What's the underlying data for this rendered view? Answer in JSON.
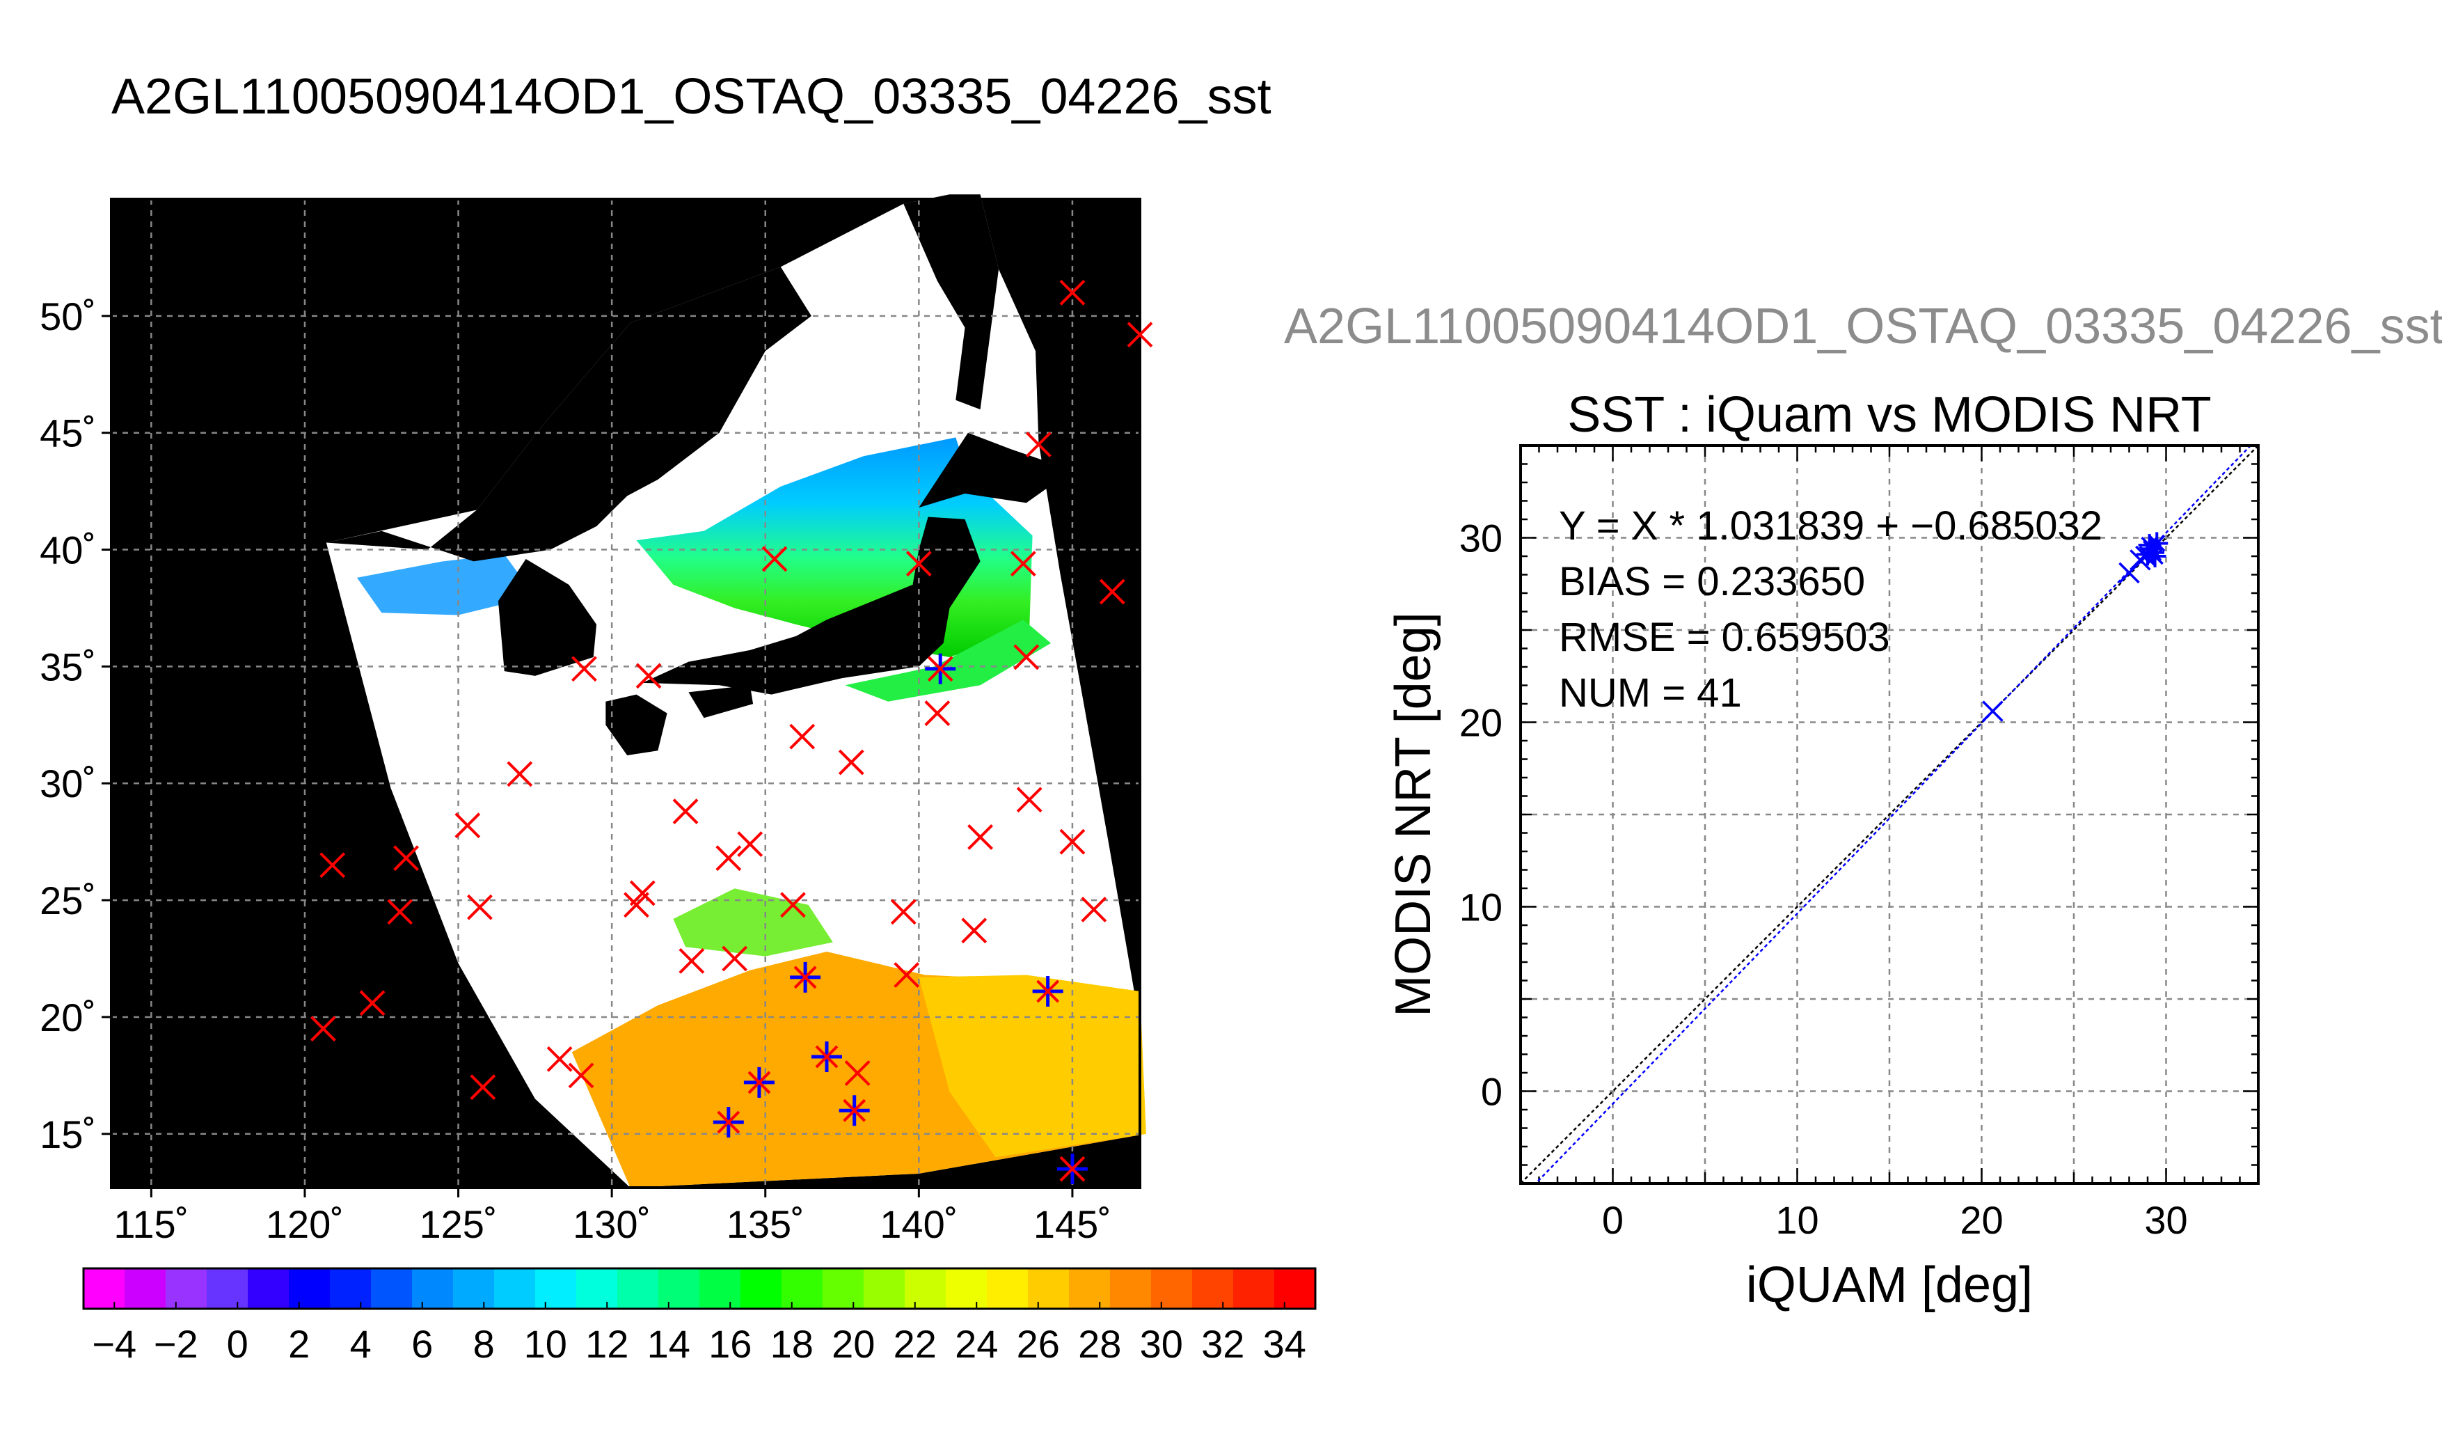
{
  "main_title": "A2GL11005090414OD1_OSTAQ_03335_04226_sst",
  "scatter_header": "A2GL11005090414OD1_OSTAQ_03335_04226_sst",
  "colors": {
    "marker_red": "#ff0000",
    "marker_blue": "#0000ff",
    "land": "#000000",
    "cloud": "#ffffff",
    "grid": "#888888"
  },
  "chart_data": [
    {
      "type": "heatmap",
      "name": "sst-map",
      "x_ticks": [
        "115˚",
        "120˚",
        "125˚",
        "130˚",
        "135˚",
        "140˚",
        "145˚"
      ],
      "x_tick_values": [
        115,
        120,
        125,
        130,
        135,
        140,
        145
      ],
      "y_ticks": [
        "15˚",
        "20˚",
        "25˚",
        "30˚",
        "35˚",
        "40˚",
        "45˚",
        "50˚"
      ],
      "y_tick_values": [
        15,
        20,
        25,
        30,
        35,
        40,
        45,
        50
      ],
      "xlim": [
        113.7,
        147.2
      ],
      "ylim": [
        12.7,
        55.0
      ],
      "grid": true,
      "buoys_red": [
        [
          145.0,
          51.0
        ],
        [
          147.2,
          49.2
        ],
        [
          143.9,
          44.5
        ],
        [
          143.4,
          39.4
        ],
        [
          146.3,
          38.2
        ],
        [
          140.0,
          39.4
        ],
        [
          135.3,
          39.6
        ],
        [
          143.5,
          35.4
        ],
        [
          140.7,
          34.9
        ],
        [
          129.1,
          34.9
        ],
        [
          131.2,
          34.6
        ],
        [
          140.6,
          33.0
        ],
        [
          136.2,
          32.0
        ],
        [
          137.8,
          30.9
        ],
        [
          127.0,
          30.4
        ],
        [
          132.4,
          28.8
        ],
        [
          133.8,
          26.8
        ],
        [
          134.5,
          27.4
        ],
        [
          142.0,
          27.7
        ],
        [
          143.6,
          29.3
        ],
        [
          145.0,
          27.5
        ],
        [
          125.3,
          28.2
        ],
        [
          123.3,
          26.8
        ],
        [
          120.9,
          26.5
        ],
        [
          123.1,
          24.5
        ],
        [
          125.7,
          24.7
        ],
        [
          130.8,
          24.8
        ],
        [
          131.0,
          25.3
        ],
        [
          135.9,
          24.8
        ],
        [
          139.5,
          24.5
        ],
        [
          145.7,
          24.6
        ],
        [
          132.6,
          22.4
        ],
        [
          134.0,
          22.5
        ],
        [
          139.6,
          21.8
        ],
        [
          141.8,
          23.7
        ],
        [
          122.2,
          20.6
        ],
        [
          120.6,
          19.5
        ],
        [
          128.3,
          18.2
        ],
        [
          129.0,
          17.5
        ],
        [
          125.8,
          17.0
        ],
        [
          138.0,
          17.6
        ],
        [
          145.0,
          13.5
        ]
      ],
      "buoys_blue": [
        [
          136.3,
          21.7
        ],
        [
          144.2,
          21.1
        ],
        [
          137.0,
          18.3
        ],
        [
          134.8,
          17.2
        ],
        [
          133.8,
          15.5
        ],
        [
          137.9,
          16.0
        ],
        [
          140.7,
          34.9
        ],
        [
          145.0,
          13.5
        ]
      ],
      "colorbar": {
        "min": -5,
        "max": 35,
        "tick_labels": [
          "−4",
          "−2",
          "0",
          "2",
          "4",
          "6",
          "8",
          "10",
          "12",
          "14",
          "16",
          "18",
          "20",
          "22",
          "24",
          "26",
          "28",
          "30",
          "32",
          "34"
        ],
        "tick_values": [
          -4,
          -2,
          0,
          2,
          4,
          6,
          8,
          10,
          12,
          14,
          16,
          18,
          20,
          22,
          24,
          26,
          28,
          30,
          32,
          34
        ],
        "colors": [
          "#ff00ff",
          "#cc00ff",
          "#9933ff",
          "#6633ff",
          "#3300ff",
          "#0000ff",
          "#0022ff",
          "#0055ff",
          "#0088ff",
          "#00aaff",
          "#00ccff",
          "#00eeff",
          "#00ffdd",
          "#00ffaa",
          "#00ff77",
          "#00ff44",
          "#00ff00",
          "#33ff00",
          "#66ff00",
          "#99ff00",
          "#ccff00",
          "#eeff00",
          "#ffee00",
          "#ffcc00",
          "#ffaa00",
          "#ff8800",
          "#ff6600",
          "#ff4400",
          "#ff2200",
          "#ff0000"
        ]
      }
    },
    {
      "type": "scatter",
      "name": "sst-scatter",
      "title": "SST : iQuam vs MODIS NRT",
      "xlabel": "iQUAM [deg]",
      "ylabel": "MODIS NRT [deg]",
      "xlim": [
        -5,
        35
      ],
      "ylim": [
        -5,
        35
      ],
      "x_ticks": [
        "0",
        "10",
        "20",
        "30"
      ],
      "x_tick_values": [
        0,
        10,
        20,
        30
      ],
      "y_ticks": [
        "0",
        "10",
        "20",
        "30"
      ],
      "y_tick_values": [
        0,
        10,
        20,
        30
      ],
      "grid": true,
      "stats": [
        "Y = X * 1.031839 + −0.685032",
        "BIAS = 0.233650",
        "RMSE = 0.659503",
        "NUM = 41"
      ],
      "slope": 1.031839,
      "intercept": -0.685032,
      "points_x": [
        [
          20.6,
          20.6
        ],
        [
          28.0,
          28.1
        ],
        [
          28.6,
          28.8
        ],
        [
          28.9,
          29.0
        ]
      ],
      "points_star": [
        [
          29.1,
          29.6
        ],
        [
          29.3,
          29.2
        ],
        [
          29.4,
          29.0
        ],
        [
          29.2,
          29.4
        ],
        [
          29.5,
          29.7
        ],
        [
          29.0,
          29.1
        ]
      ]
    }
  ]
}
